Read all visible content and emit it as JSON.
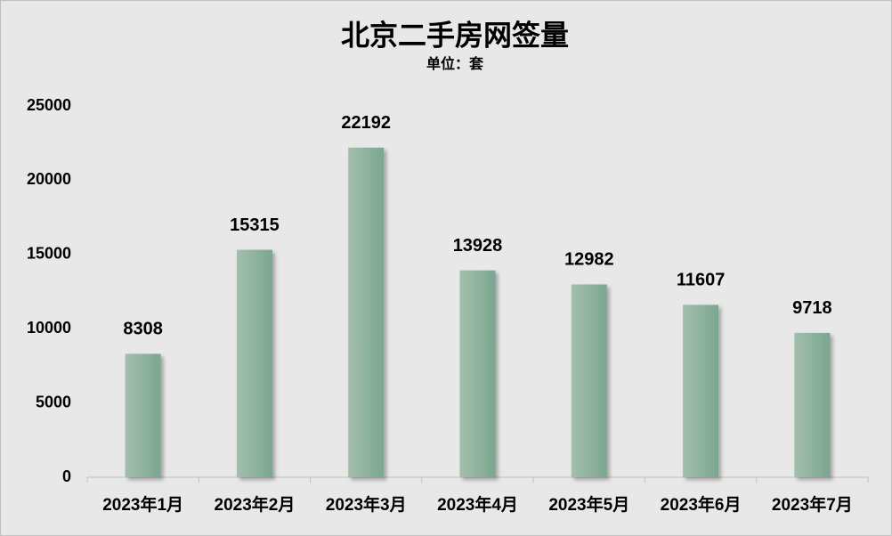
{
  "chart_data": {
    "type": "bar",
    "title": "北京二手房网签量",
    "subtitle": "单位：套",
    "categories": [
      "2023年1月",
      "2023年2月",
      "2023年3月",
      "2023年4月",
      "2023年5月",
      "2023年6月",
      "2023年7月"
    ],
    "values": [
      8308,
      15315,
      22192,
      13928,
      12982,
      11607,
      9718
    ],
    "color": "#7aa690",
    "ylim": [
      0,
      25000
    ],
    "yticks": [
      0,
      5000,
      10000,
      15000,
      20000,
      25000
    ],
    "grid": false
  }
}
